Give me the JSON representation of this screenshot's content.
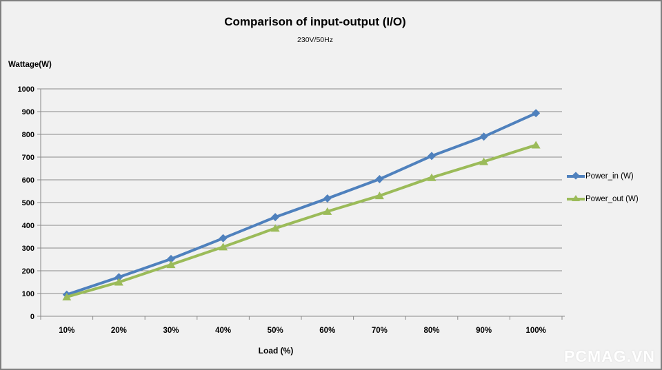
{
  "title": "Comparison of input-output (I/O)",
  "subtitle": "230V/50Hz",
  "watermark": "PCMAG.VN",
  "chart_data": {
    "type": "line",
    "title": "Comparison of input-output (I/O)",
    "subtitle": "230V/50Hz",
    "xlabel": "Load (%)",
    "ylabel": "Wattage(W)",
    "categories": [
      "10%",
      "20%",
      "30%",
      "40%",
      "50%",
      "60%",
      "70%",
      "80%",
      "90%",
      "100%"
    ],
    "series": [
      {
        "name": "Power_in (W)",
        "color": "#4F81BD",
        "marker": "diamond",
        "values": [
          95,
          172,
          252,
          343,
          436,
          518,
          603,
          705,
          790,
          893
        ]
      },
      {
        "name": "Power_out (W)",
        "color": "#9BBB59",
        "marker": "triangle",
        "values": [
          85,
          150,
          227,
          305,
          387,
          461,
          530,
          610,
          680,
          753
        ]
      }
    ],
    "ylim": [
      0,
      1000
    ],
    "ytick_step": 100,
    "grid": true,
    "legend_position": "right"
  },
  "colors": {
    "background": "#F1F1F1",
    "gridline": "#898989",
    "axis": "#898989",
    "tick_text": "#000000",
    "border": "#7F7F7F"
  }
}
